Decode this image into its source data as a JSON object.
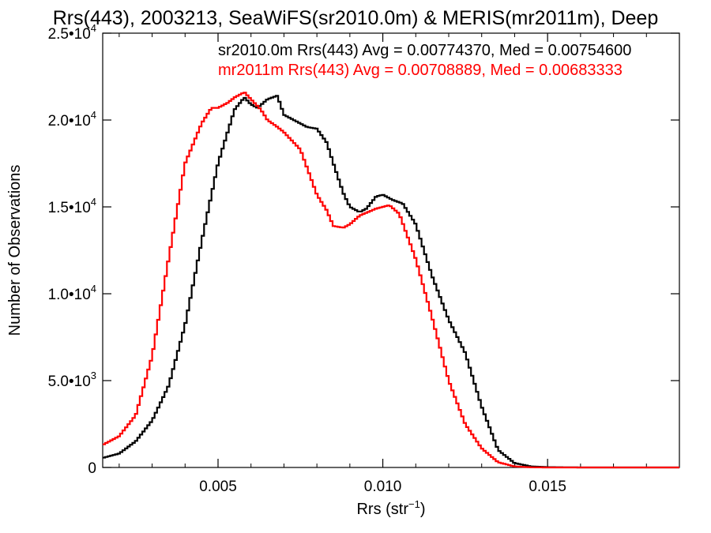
{
  "chart_data": {
    "type": "line",
    "title": "Rrs(443), 2003213, SeaWiFS(sr2010.0m) & MERIS(mr2011m), Deep",
    "xlabel": "Rrs (str",
    "xlabel_sup": "−1",
    "xlabel_close": ")",
    "ylabel": "Number of Observations",
    "xlim": [
      0.0015,
      0.019
    ],
    "ylim": [
      0,
      25000
    ],
    "grid": false,
    "x_ticks": [
      {
        "value": 0.005,
        "label": "0.005"
      },
      {
        "value": 0.01,
        "label": "0.010"
      },
      {
        "value": 0.015,
        "label": "0.015"
      }
    ],
    "y_ticks": [
      {
        "value": 0,
        "mantissa": "0",
        "exp": ""
      },
      {
        "value": 5000,
        "mantissa": "5.0•10",
        "exp": "3"
      },
      {
        "value": 10000,
        "mantissa": "1.0•10",
        "exp": "4"
      },
      {
        "value": 15000,
        "mantissa": "1.5•10",
        "exp": "4"
      },
      {
        "value": 20000,
        "mantissa": "2.0•10",
        "exp": "4"
      },
      {
        "value": 25000,
        "mantissa": "2.5•10",
        "exp": "4"
      }
    ],
    "annotations": [
      {
        "text": "sr2010.0m Rrs(443) Avg = 0.00774370, Med = 0.00754600",
        "color": "#000000"
      },
      {
        "text": "mr2011m Rrs(443) Avg = 0.00708889, Med = 0.00683333",
        "color": "#ff0000"
      }
    ],
    "series": [
      {
        "color": "#000000",
        "points": [
          [
            0.0015,
            550
          ],
          [
            0.002,
            800
          ],
          [
            0.0025,
            1500
          ],
          [
            0.003,
            2700
          ],
          [
            0.0035,
            4700
          ],
          [
            0.004,
            8200
          ],
          [
            0.0045,
            13000
          ],
          [
            0.005,
            17500
          ],
          [
            0.0055,
            20600
          ],
          [
            0.0058,
            21300
          ],
          [
            0.006,
            20900
          ],
          [
            0.0062,
            20700
          ],
          [
            0.0065,
            21200
          ],
          [
            0.0068,
            21400
          ],
          [
            0.007,
            20300
          ],
          [
            0.0073,
            20000
          ],
          [
            0.0077,
            19600
          ],
          [
            0.008,
            19500
          ],
          [
            0.0083,
            18700
          ],
          [
            0.0085,
            17500
          ],
          [
            0.0088,
            15800
          ],
          [
            0.009,
            15000
          ],
          [
            0.0093,
            14700
          ],
          [
            0.0095,
            14900
          ],
          [
            0.0098,
            15600
          ],
          [
            0.01,
            15700
          ],
          [
            0.0103,
            15400
          ],
          [
            0.0106,
            15200
          ],
          [
            0.011,
            14000
          ],
          [
            0.0115,
            11000
          ],
          [
            0.012,
            8500
          ],
          [
            0.0125,
            6600
          ],
          [
            0.013,
            3500
          ],
          [
            0.0135,
            1000
          ],
          [
            0.014,
            250
          ],
          [
            0.0145,
            60
          ],
          [
            0.015,
            20
          ],
          [
            0.016,
            0
          ],
          [
            0.019,
            0
          ]
        ]
      },
      {
        "color": "#ff0000",
        "points": [
          [
            0.0015,
            1300
          ],
          [
            0.002,
            1800
          ],
          [
            0.0025,
            3000
          ],
          [
            0.003,
            6400
          ],
          [
            0.0035,
            12000
          ],
          [
            0.004,
            17500
          ],
          [
            0.0045,
            19800
          ],
          [
            0.0048,
            20700
          ],
          [
            0.005,
            20700
          ],
          [
            0.0053,
            21000
          ],
          [
            0.0055,
            21300
          ],
          [
            0.0058,
            21600
          ],
          [
            0.006,
            21200
          ],
          [
            0.0063,
            20600
          ],
          [
            0.0065,
            20000
          ],
          [
            0.0068,
            19600
          ],
          [
            0.007,
            19300
          ],
          [
            0.0075,
            18300
          ],
          [
            0.008,
            15700
          ],
          [
            0.0083,
            14800
          ],
          [
            0.0085,
            13900
          ],
          [
            0.0088,
            13800
          ],
          [
            0.009,
            14000
          ],
          [
            0.0093,
            14500
          ],
          [
            0.0098,
            14900
          ],
          [
            0.0102,
            15100
          ],
          [
            0.0105,
            14600
          ],
          [
            0.011,
            12000
          ],
          [
            0.0115,
            8600
          ],
          [
            0.012,
            5000
          ],
          [
            0.0125,
            2500
          ],
          [
            0.013,
            1100
          ],
          [
            0.0135,
            300
          ],
          [
            0.014,
            60
          ],
          [
            0.0145,
            10
          ],
          [
            0.015,
            0
          ],
          [
            0.019,
            0
          ]
        ]
      }
    ]
  }
}
